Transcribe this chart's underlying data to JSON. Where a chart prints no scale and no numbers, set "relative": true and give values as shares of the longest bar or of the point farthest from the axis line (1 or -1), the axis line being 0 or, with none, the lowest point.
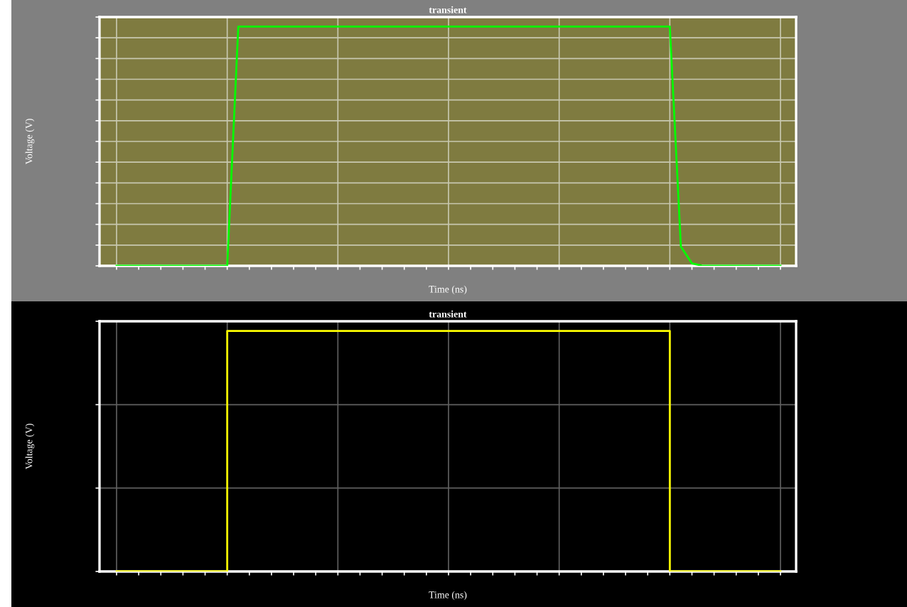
{
  "chart_data": [
    {
      "type": "line",
      "title": "transient",
      "xlabel": "Time (ns)",
      "ylabel": "Voltage (V)",
      "relative": true,
      "grid": true,
      "tick_labels": false,
      "categories": [
        null,
        null,
        null,
        null,
        null,
        null,
        null,
        null,
        null,
        null,
        null,
        null,
        null,
        null,
        null,
        null,
        null,
        null,
        null,
        null,
        null,
        null,
        null,
        null,
        null,
        null,
        null,
        null,
        null,
        null,
        null,
        null,
        null,
        null,
        null,
        null,
        null,
        null,
        null,
        null,
        null,
        null,
        null,
        null,
        null,
        null,
        null,
        null,
        null,
        null,
        null,
        null,
        null,
        null,
        null,
        null,
        null,
        null,
        null,
        null,
        null
      ],
      "series": [
        {
          "color": "#00ff00",
          "values": [
            0,
            0,
            0,
            0,
            0,
            0,
            0,
            0,
            0,
            0,
            0,
            1,
            1,
            1,
            1,
            1,
            1,
            1,
            1,
            1,
            1,
            1,
            1,
            1,
            1,
            1,
            1,
            1,
            1,
            1,
            1,
            1,
            1,
            1,
            1,
            1,
            1,
            1,
            1,
            1,
            1,
            1,
            1,
            1,
            1,
            1,
            1,
            1,
            1,
            1,
            1,
            0.08,
            0.01,
            0,
            0,
            0,
            0,
            0,
            0,
            0,
            0
          ]
        }
      ]
    },
    {
      "type": "step",
      "title": "transient",
      "xlabel": "Time (ns)",
      "ylabel": "Voltage (V)",
      "relative": true,
      "grid": true,
      "tick_labels": false,
      "categories": [
        null,
        null,
        null,
        null,
        null,
        null,
        null,
        null,
        null,
        null,
        null,
        null,
        null,
        null,
        null,
        null,
        null,
        null,
        null,
        null,
        null,
        null,
        null,
        null,
        null,
        null,
        null,
        null,
        null,
        null,
        null,
        null,
        null,
        null,
        null,
        null,
        null,
        null,
        null,
        null,
        null,
        null,
        null,
        null,
        null,
        null,
        null,
        null,
        null,
        null,
        null,
        null,
        null,
        null,
        null,
        null,
        null,
        null,
        null,
        null,
        null
      ],
      "series": [
        {
          "color": "#ffff00",
          "values": [
            0,
            0,
            0,
            0,
            0,
            0,
            0,
            0,
            0,
            0,
            1,
            1,
            1,
            1,
            1,
            1,
            1,
            1,
            1,
            1,
            1,
            1,
            1,
            1,
            1,
            1,
            1,
            1,
            1,
            1,
            1,
            1,
            1,
            1,
            1,
            1,
            1,
            1,
            1,
            1,
            1,
            1,
            1,
            1,
            1,
            1,
            1,
            1,
            1,
            1,
            0,
            0,
            0,
            0,
            0,
            0,
            0,
            0,
            0,
            0,
            0
          ]
        }
      ]
    }
  ]
}
